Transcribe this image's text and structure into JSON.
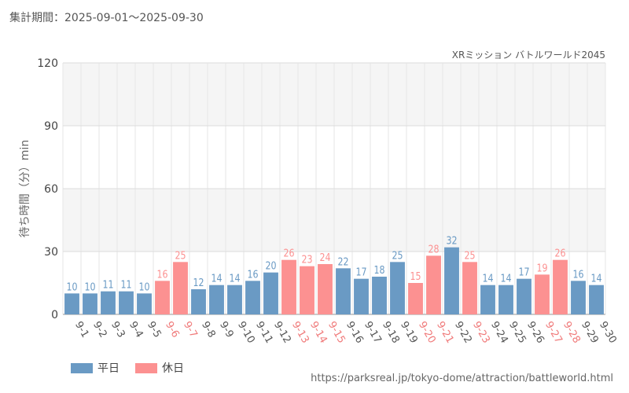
{
  "header": {
    "period": "集計期間：2025-09-01～2025-09-30"
  },
  "colors": {
    "weekday": "#6a9ac4",
    "holiday": "#fc9191",
    "holiday_label": "#f07a7a",
    "weekday_label": "#555555"
  },
  "legend": {
    "weekday_label": "平日",
    "holiday_label": "休日"
  },
  "footer": {
    "source": "https://parksreal.jp/tokyo-dome/attraction/battleworld.html"
  },
  "chart_data": {
    "type": "bar",
    "title": "XRミッション バトルワールド2045",
    "ylabel": "待ち時間（分）min",
    "xlabel": "",
    "ylim": [
      0,
      120
    ],
    "yticks": [
      0,
      30,
      60,
      90,
      120
    ],
    "grid": true,
    "legend_position": "bottom-left",
    "categories": [
      "9-1",
      "9-2",
      "9-3",
      "9-4",
      "9-5",
      "9-6",
      "9-7",
      "9-8",
      "9-9",
      "9-10",
      "9-11",
      "9-12",
      "9-13",
      "9-14",
      "9-15",
      "9-16",
      "9-17",
      "9-18",
      "9-19",
      "9-20",
      "9-21",
      "9-22",
      "9-23",
      "9-24",
      "9-25",
      "9-26",
      "9-27",
      "9-28",
      "9-29",
      "9-30"
    ],
    "values": [
      10,
      10,
      11,
      11,
      10,
      16,
      25,
      12,
      14,
      14,
      16,
      20,
      26,
      23,
      24,
      22,
      17,
      18,
      25,
      15,
      28,
      32,
      25,
      14,
      14,
      17,
      19,
      26,
      16,
      14
    ],
    "day_type": [
      "平日",
      "平日",
      "平日",
      "平日",
      "平日",
      "休日",
      "休日",
      "平日",
      "平日",
      "平日",
      "平日",
      "平日",
      "休日",
      "休日",
      "休日",
      "平日",
      "平日",
      "平日",
      "平日",
      "休日",
      "休日",
      "平日",
      "休日",
      "平日",
      "平日",
      "平日",
      "休日",
      "休日",
      "平日",
      "平日"
    ]
  }
}
